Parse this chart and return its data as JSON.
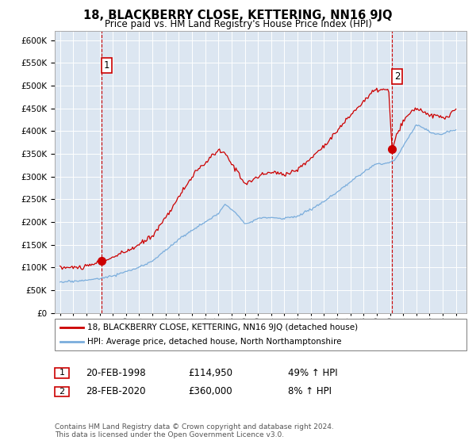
{
  "title": "18, BLACKBERRY CLOSE, KETTERING, NN16 9JQ",
  "subtitle": "Price paid vs. HM Land Registry's House Price Index (HPI)",
  "ylim": [
    0,
    620000
  ],
  "yticks": [
    0,
    50000,
    100000,
    150000,
    200000,
    250000,
    300000,
    350000,
    400000,
    450000,
    500000,
    550000,
    600000
  ],
  "background_color": "#dce6f1",
  "grid_color": "#ffffff",
  "sale_color": "#cc0000",
  "hpi_color": "#7aaddc",
  "vline_color": "#cc0000",
  "marker_color": "#cc0000",
  "sale1_year": 1998.15,
  "sale1_val": 114950,
  "sale2_year": 2020.15,
  "sale2_val": 360000,
  "legend_sale": "18, BLACKBERRY CLOSE, KETTERING, NN16 9JQ (detached house)",
  "legend_hpi": "HPI: Average price, detached house, North Northamptonshire",
  "footer": "Contains HM Land Registry data © Crown copyright and database right 2024.\nThis data is licensed under the Open Government Licence v3.0.",
  "xlim_left": 1994.6,
  "xlim_right": 2025.8
}
